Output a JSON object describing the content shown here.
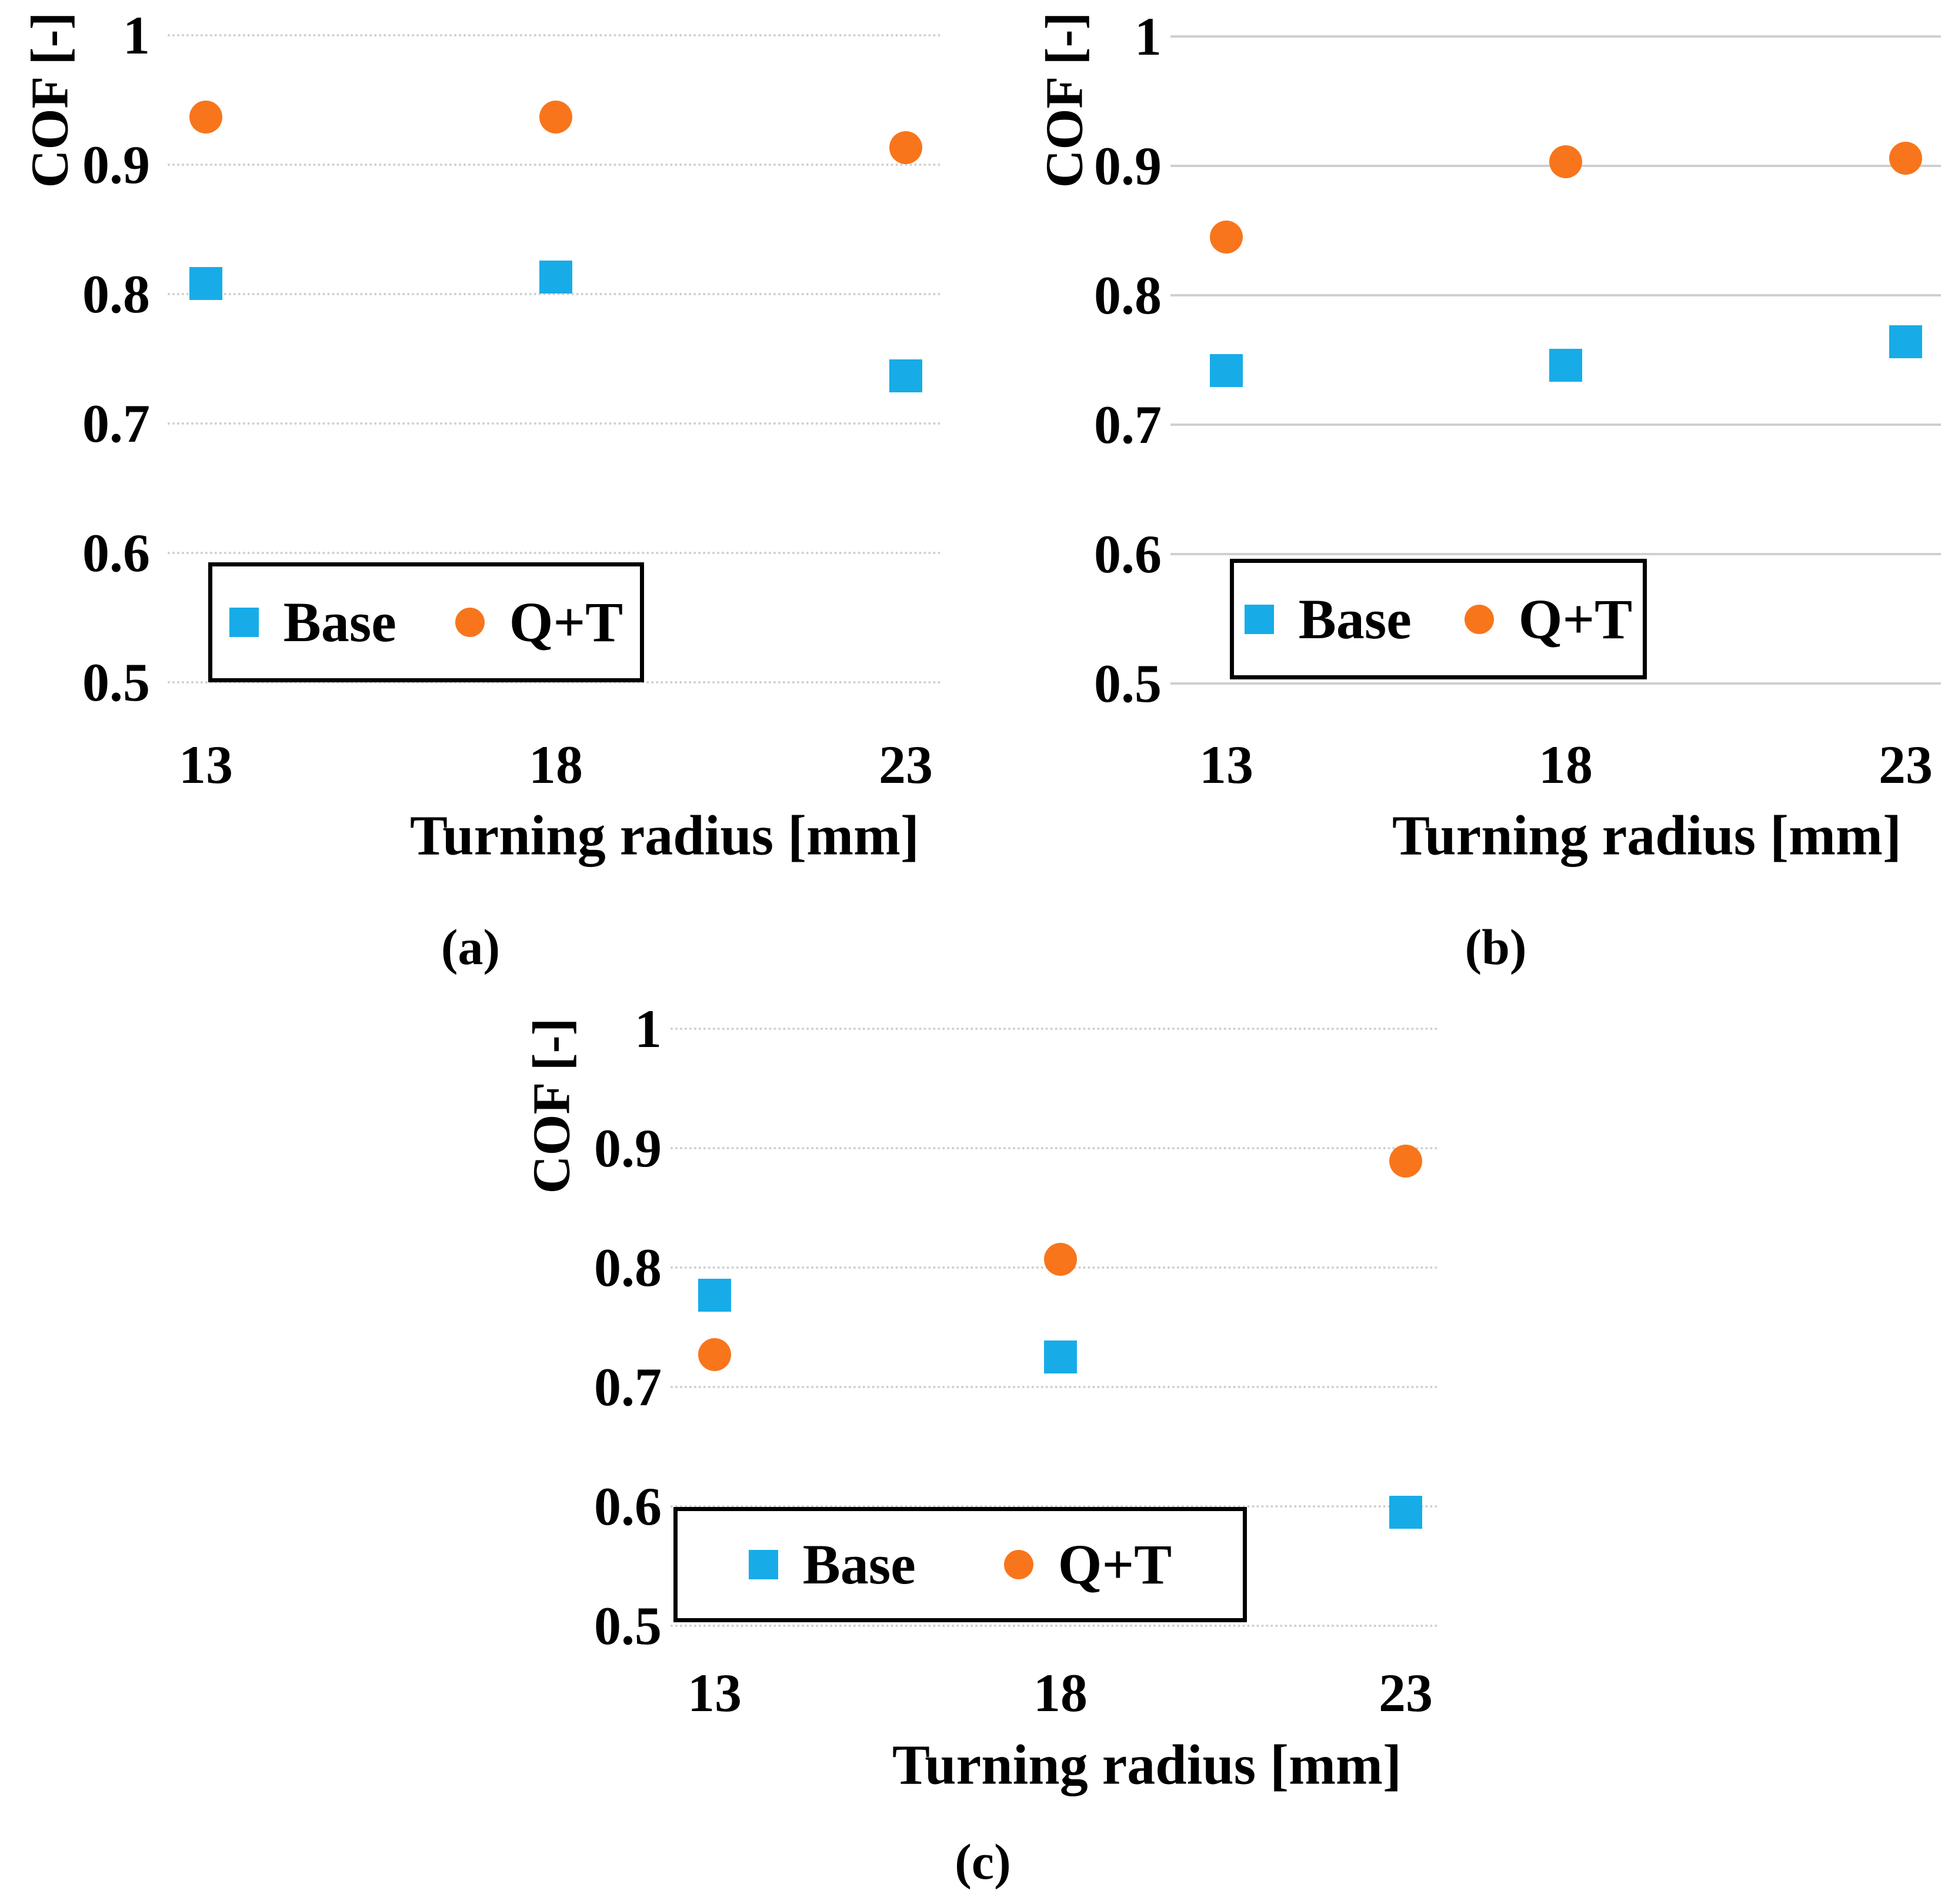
{
  "figure": {
    "description": "Three scatter plots of coefficient of friction (COF) versus turning radius comparing Base and Q+T heat treatment conditions",
    "colors": {
      "base_series": "#17ACE8",
      "qt_series": "#F8751C",
      "gridline": "#CFCFCF",
      "legend_border": "#000000",
      "text": "#000000",
      "background": "#FFFFFF"
    }
  },
  "chart_data": [
    {
      "id": "a",
      "type": "scatter",
      "caption": "(a)",
      "xlabel": "Turning radius [mm]",
      "ylabel": "COF [-]",
      "x": [
        13,
        18,
        23
      ],
      "x_tick_labels": [
        "13",
        "18",
        "23"
      ],
      "y_ticks": [
        1,
        0.9,
        0.8,
        0.7,
        0.6,
        0.5
      ],
      "y_tick_labels": [
        "1",
        "0.9",
        "0.8",
        "0.7",
        "0.6",
        "0.5"
      ],
      "ylim": [
        0.5,
        1.0
      ],
      "grid": true,
      "legend_position": "inside-bottom-left",
      "series": [
        {
          "name": "Base",
          "marker": "square",
          "color": "#17ACE8",
          "values": [
            0.808,
            0.813,
            0.737
          ]
        },
        {
          "name": "Q+T",
          "marker": "circle",
          "color": "#F8751C",
          "values": [
            0.937,
            0.937,
            0.913
          ]
        }
      ]
    },
    {
      "id": "b",
      "type": "scatter",
      "caption": "(b)",
      "xlabel": "Turning radius [mm]",
      "ylabel": "COF [-]",
      "x": [
        13,
        18,
        23
      ],
      "x_tick_labels": [
        "13",
        "18",
        "23"
      ],
      "y_ticks": [
        1,
        0.9,
        0.8,
        0.7,
        0.6,
        0.5
      ],
      "y_tick_labels": [
        "1",
        "0.9",
        "0.8",
        "0.7",
        "0.6",
        "0.5"
      ],
      "ylim": [
        0.5,
        1.0
      ],
      "grid": true,
      "legend_position": "inside-bottom-left",
      "series": [
        {
          "name": "Base",
          "marker": "square",
          "color": "#17ACE8",
          "values": [
            0.742,
            0.746,
            0.764
          ]
        },
        {
          "name": "Q+T",
          "marker": "circle",
          "color": "#F8751C",
          "values": [
            0.845,
            0.903,
            0.906
          ]
        }
      ]
    },
    {
      "id": "c",
      "type": "scatter",
      "caption": "(c)",
      "xlabel": "Turning radius [mm]",
      "ylabel": "COF [-]",
      "x": [
        13,
        18,
        23
      ],
      "x_tick_labels": [
        "13",
        "18",
        "23"
      ],
      "y_ticks": [
        1,
        0.9,
        0.8,
        0.7,
        0.6,
        0.5
      ],
      "y_tick_labels": [
        "1",
        "0.9",
        "0.8",
        "0.7",
        "0.6",
        "0.5"
      ],
      "ylim": [
        0.5,
        1.0
      ],
      "grid": true,
      "legend_position": "inside-bottom-left",
      "series": [
        {
          "name": "Base",
          "marker": "square",
          "color": "#17ACE8",
          "values": [
            0.777,
            0.725,
            0.595
          ]
        },
        {
          "name": "Q+T",
          "marker": "circle",
          "color": "#F8751C",
          "values": [
            0.727,
            0.807,
            0.889
          ]
        }
      ]
    }
  ]
}
